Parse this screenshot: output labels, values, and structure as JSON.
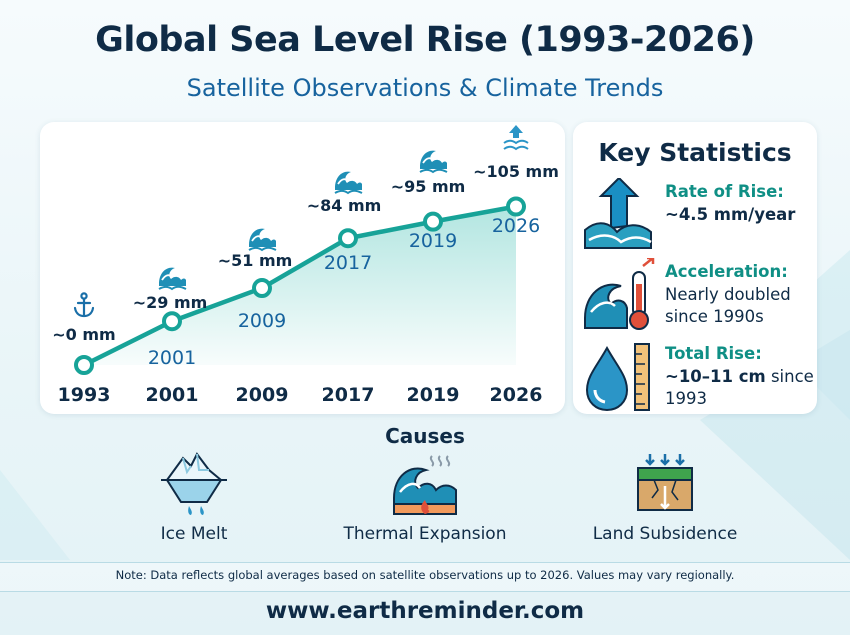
{
  "title": "Global Sea Level Rise (1993-2026)",
  "subtitle": "Satellite Observations & Climate Trends",
  "colors": {
    "accent": "#17a398",
    "navy": "#0f2b46",
    "teal_label": "#0f8f85",
    "blue": "#17639e"
  },
  "chart_data": {
    "type": "line",
    "categories": [
      "1993",
      "2001",
      "2009",
      "2017",
      "2019",
      "2026"
    ],
    "values": [
      0,
      29,
      51,
      84,
      95,
      105
    ],
    "data_labels": [
      "~0 mm",
      "~29 mm",
      "~51 mm",
      "~84 mm",
      "~95 mm",
      "~105 mm"
    ],
    "point_labels": [
      "",
      "2001",
      "2009",
      "2017",
      "2019",
      "2026"
    ],
    "marker_icons": [
      "anchor-icon",
      "wave-icon",
      "wave-icon",
      "wave-icon",
      "wave-icon",
      "rising-water-icon"
    ],
    "ylim": [
      0,
      110
    ],
    "grid": false,
    "legend": "none"
  },
  "stats": {
    "title": "Key Statistics",
    "items": [
      {
        "label": "Rate of Rise:",
        "value_bold": "~4.5 mm/year",
        "value_rest": "",
        "icon": "rising-arrow-wave-icon"
      },
      {
        "label": "Acceleration:",
        "value_bold": "",
        "value_rest": "Nearly doubled since 1990s",
        "icon": "wave-thermometer-icon"
      },
      {
        "label": "Total Rise:",
        "value_bold": "~10–11 cm",
        "value_rest": " since 1993",
        "icon": "droplet-ruler-icon"
      }
    ]
  },
  "causes": {
    "title": "Causes",
    "items": [
      {
        "label": "Ice Melt",
        "icon": "iceberg-icon"
      },
      {
        "label": "Thermal Expansion",
        "icon": "heated-wave-icon"
      },
      {
        "label": "Land Subsidence",
        "icon": "sinking-ground-icon"
      }
    ]
  },
  "note": "Note: Data reflects global averages based on satellite observations up to 2026. Values may vary regionally.",
  "website": "www.earthreminder.com"
}
